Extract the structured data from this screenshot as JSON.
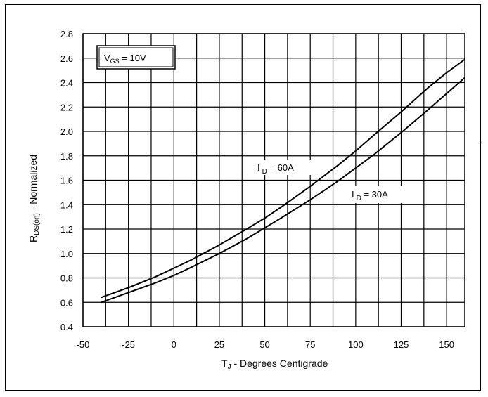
{
  "chart_data": {
    "type": "line",
    "xlabel": {
      "main": "T",
      "sub": "J",
      "rest": " - Degrees Centigrade"
    },
    "ylabel": {
      "main": "R",
      "sub": "DS(on)",
      "rest": " - Normalized"
    },
    "xlim": [
      -50,
      160
    ],
    "ylim": [
      0.4,
      2.8
    ],
    "x_ticks": [
      -50,
      -25,
      0,
      25,
      50,
      75,
      100,
      125,
      150
    ],
    "y_ticks": [
      "0.4",
      "0.6",
      "0.8",
      "1.0",
      "1.2",
      "1.4",
      "1.6",
      "1.8",
      "2.0",
      "2.2",
      "2.4",
      "2.6",
      "2.8"
    ],
    "grid": true,
    "condition_box": {
      "main": "V",
      "sub": "GS",
      "rest": " = 10V"
    },
    "series": [
      {
        "name": {
          "main": "I",
          "sub": "D",
          "rest": " = 60A"
        },
        "x": [
          -40,
          -25,
          -10,
          0,
          10,
          25,
          40,
          50,
          60,
          75,
          90,
          100,
          110,
          125,
          140,
          150,
          160
        ],
        "y": [
          0.64,
          0.72,
          0.81,
          0.88,
          0.95,
          1.07,
          1.2,
          1.29,
          1.39,
          1.55,
          1.72,
          1.84,
          1.97,
          2.16,
          2.36,
          2.48,
          2.59
        ]
      },
      {
        "name": {
          "main": "I",
          "sub": "D",
          "rest": " = 30A"
        },
        "x": [
          -40,
          -25,
          -10,
          0,
          10,
          25,
          40,
          50,
          60,
          75,
          90,
          100,
          110,
          125,
          140,
          150,
          160
        ],
        "y": [
          0.6,
          0.68,
          0.76,
          0.82,
          0.89,
          1.0,
          1.12,
          1.21,
          1.3,
          1.44,
          1.59,
          1.7,
          1.81,
          1.99,
          2.18,
          2.31,
          2.44
        ]
      }
    ]
  },
  "stray_mark": ","
}
